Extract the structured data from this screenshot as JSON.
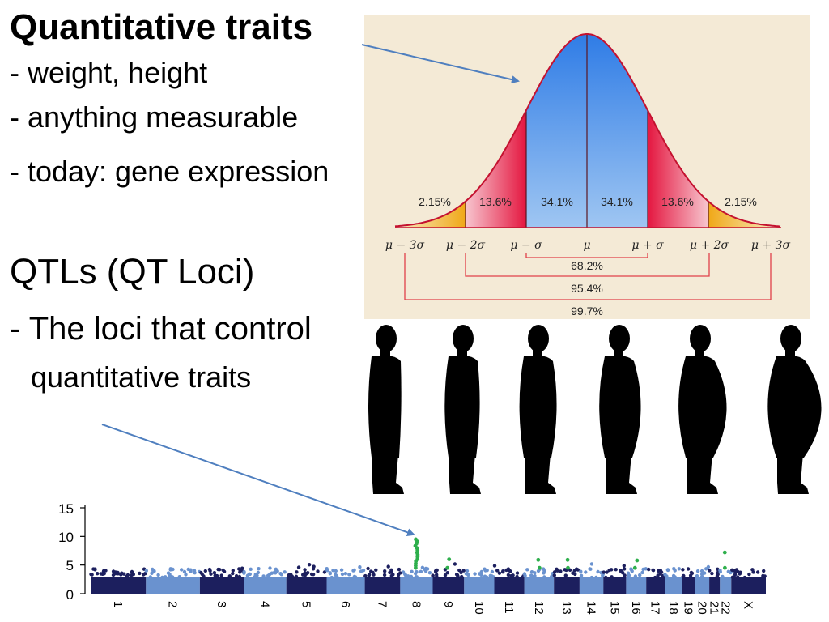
{
  "slide": {
    "quant_title": "Quantitative traits",
    "quant_items": [
      "- weight, height",
      "- anything measurable"
    ],
    "quant_today": "- today: gene expression",
    "qtl_title": "QTLs (QT Loci)",
    "qtl_desc_line1": "- The loci that control",
    "qtl_desc_line2": "quantitative traits"
  },
  "bell_curve": {
    "segments": [
      "2.15%",
      "13.6%",
      "34.1%",
      "34.1%",
      "13.6%",
      "2.15%"
    ],
    "axis_labels": [
      "μ − 3σ",
      "μ − 2σ",
      "μ − σ",
      "μ",
      "μ + σ",
      "μ + 2σ",
      "μ + 3σ"
    ],
    "brackets": [
      "68.2%",
      "95.4%",
      "99.7%"
    ],
    "colors": {
      "outer": "#f3b21a",
      "mid": "#e8304e",
      "inner": "#3f86e6",
      "curve": "#c4112f",
      "bracket": "#e0404a"
    }
  },
  "silhouettes": {
    "icon": "person-silhouette-icon",
    "count": 6
  },
  "manhattan": {
    "y_ticks": [
      "15",
      "10",
      "5",
      "0"
    ],
    "ylim": [
      0,
      15
    ],
    "chromosomes": [
      "1",
      "2",
      "3",
      "4",
      "5",
      "6",
      "7",
      "8",
      "9",
      "10",
      "11",
      "12",
      "13",
      "14",
      "15",
      "16",
      "17",
      "18",
      "19",
      "20",
      "21",
      "22",
      "X"
    ],
    "colors": {
      "dark": "#1c1f5e",
      "light": "#6a92cf",
      "signif": "#2eaf4c"
    },
    "peaks": [
      {
        "chrom": "8",
        "value": 9.5
      },
      {
        "chrom": "9",
        "value": 6.0
      },
      {
        "chrom": "12",
        "value": 5.9
      },
      {
        "chrom": "13",
        "value": 5.9
      },
      {
        "chrom": "16",
        "value": 5.8
      },
      {
        "chrom": "22",
        "value": 7.2
      }
    ]
  }
}
